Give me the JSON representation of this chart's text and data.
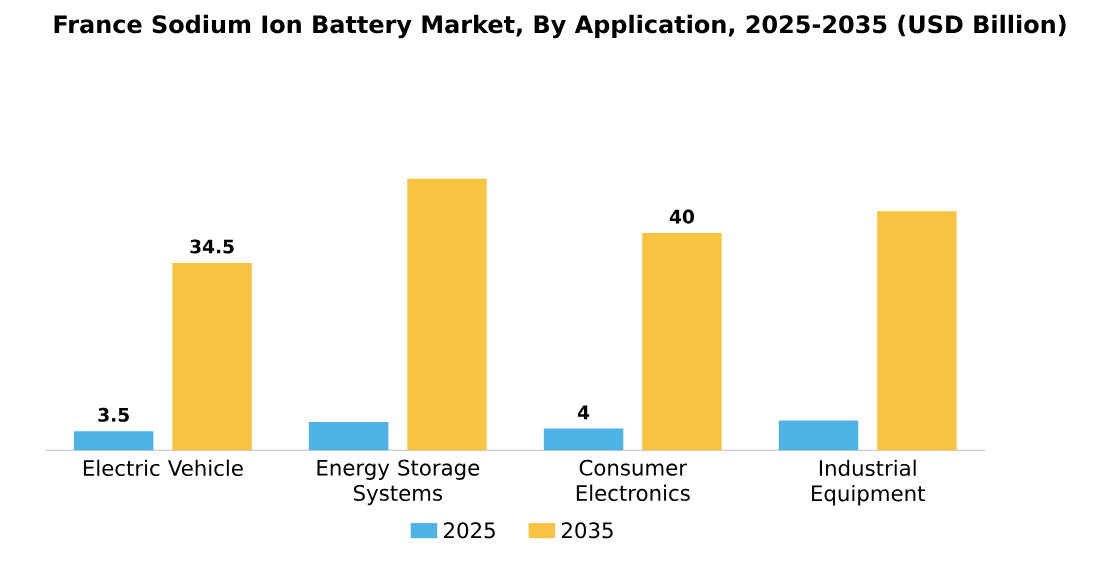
{
  "chart_data": {
    "type": "bar",
    "title": "France Sodium Ion Battery Market, By Application, 2025-2035 (USD Billion)",
    "categories": [
      "Electric Vehicle",
      "Energy Storage Systems",
      "Consumer Electronics",
      "Industrial Equipment"
    ],
    "series": [
      {
        "name": "2025",
        "color": "#4db3e6",
        "values": [
          3.5,
          5.2,
          4,
          5.5
        ],
        "value_labels": [
          "3.5",
          null,
          "4",
          null
        ]
      },
      {
        "name": "2035",
        "color": "#f9c342",
        "values": [
          34.5,
          50,
          40,
          44
        ],
        "value_labels": [
          "34.5",
          null,
          "40",
          null
        ]
      }
    ],
    "legend": "bottom"
  }
}
